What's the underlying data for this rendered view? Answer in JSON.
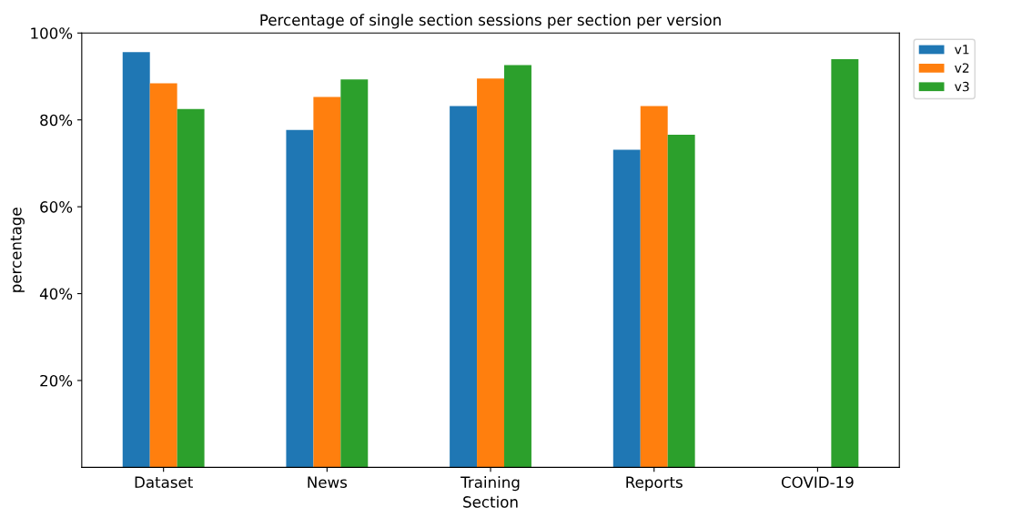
{
  "chart_data": {
    "type": "bar",
    "title": "Percentage of single section sessions per section per version",
    "xlabel": "Section",
    "ylabel": "percentage",
    "categories": [
      "Dataset",
      "News",
      "Training",
      "Reports",
      "COVID-19"
    ],
    "series": [
      {
        "name": "v1",
        "color": "#1f77b4",
        "values": [
          95.6,
          77.7,
          83.2,
          73.1,
          null
        ]
      },
      {
        "name": "v2",
        "color": "#ff7f0e",
        "values": [
          88.4,
          85.3,
          89.5,
          83.2,
          null
        ]
      },
      {
        "name": "v3",
        "color": "#2ca02c",
        "values": [
          82.5,
          89.3,
          92.6,
          76.6,
          94
        ]
      }
    ],
    "ylim": [
      0,
      100
    ],
    "yticks": [
      {
        "value": 20,
        "label": "20%"
      },
      {
        "value": 40,
        "label": "40%"
      },
      {
        "value": 60,
        "label": "60%"
      },
      {
        "value": 80,
        "label": "80%"
      },
      {
        "value": 100,
        "label": "100%"
      }
    ],
    "legend": "right",
    "grid": false
  }
}
